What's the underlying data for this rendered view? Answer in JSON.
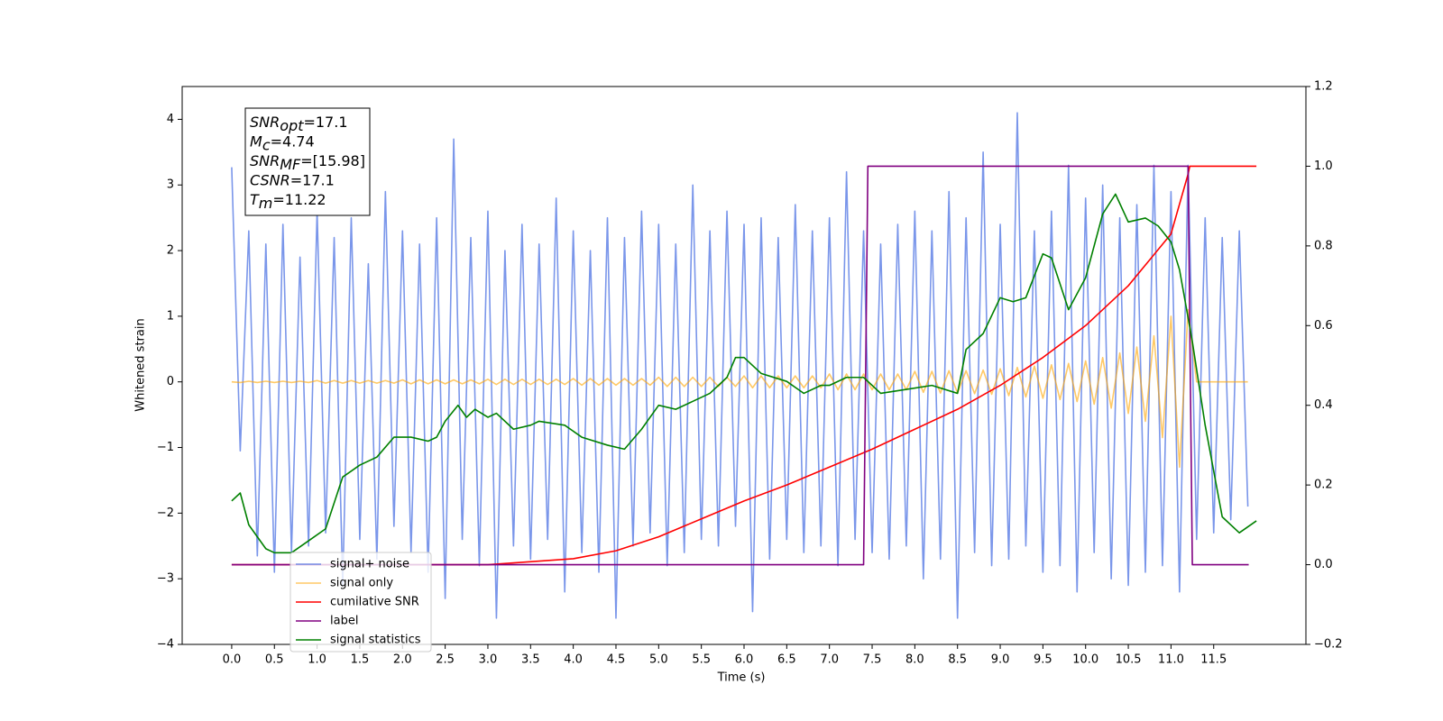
{
  "chart_data": {
    "type": "line",
    "xlabel": "Time (s)",
    "ylabel": "Whitened strain",
    "xlim": [
      -0.58,
      12.58
    ],
    "ylim": [
      -4,
      4.5
    ],
    "y2lim": [
      -0.2,
      1.2
    ],
    "xticks": [
      {
        "value": 0,
        "label": "0.0"
      },
      0.5,
      {
        "value": 1,
        "label": "1.0"
      },
      1.5,
      {
        "value": 2,
        "label": "2.0"
      },
      2.5,
      {
        "value": 3,
        "label": "3.0"
      },
      3.5,
      {
        "value": 4,
        "label": "4.0"
      },
      4.5,
      {
        "value": 5,
        "label": "5.0"
      },
      5.5,
      {
        "value": 6,
        "label": "6.0"
      },
      6.5,
      {
        "value": 7,
        "label": "7.0"
      },
      7.5,
      {
        "value": 8,
        "label": "8.0"
      },
      8.5,
      {
        "value": 9,
        "label": "9.0"
      },
      9.5,
      {
        "value": 10,
        "label": "10.0"
      },
      10.5,
      {
        "value": 11,
        "label": "11.0"
      },
      11.5
    ],
    "yticks": [
      {
        "value": -4,
        "label": "−4"
      },
      {
        "value": -3,
        "label": "−3"
      },
      {
        "value": -2,
        "label": "−2"
      },
      {
        "value": -1,
        "label": "−1"
      },
      0,
      1,
      2,
      3,
      4
    ],
    "y2ticks": [
      {
        "value": -0.2,
        "label": "−0.2"
      },
      {
        "value": 0,
        "label": "0.0"
      },
      0.2,
      0.4,
      0.6,
      0.8,
      {
        "value": 1,
        "label": "1.0"
      },
      1.2
    ],
    "annotation": [
      {
        "name": "SNR",
        "sub": "opt",
        "text": "=17.1"
      },
      {
        "name": "M",
        "sub": "c",
        "text": "=4.74"
      },
      {
        "name": "SNR",
        "sub": "MF",
        "text": "=[15.98]"
      },
      {
        "name": "CSNR",
        "text": "=17.1"
      },
      {
        "name": "T",
        "sub": "m",
        "text": "=11.22"
      }
    ],
    "x": [
      0,
      0.1,
      0.2,
      0.3,
      0.4,
      0.5,
      0.6,
      0.7,
      0.8,
      0.9,
      1,
      1.1,
      1.2,
      1.3,
      1.4,
      1.5,
      1.6,
      1.7,
      1.8,
      1.9,
      2,
      2.1,
      2.2,
      2.3,
      2.4,
      2.5,
      2.6,
      2.7,
      2.8,
      2.9,
      3,
      3.1,
      3.2,
      3.3,
      3.4,
      3.5,
      3.6,
      3.7,
      3.8,
      3.9,
      4,
      4.1,
      4.2,
      4.3,
      4.4,
      4.5,
      4.6,
      4.7,
      4.8,
      4.9,
      5,
      5.1,
      5.2,
      5.3,
      5.4,
      5.5,
      5.6,
      5.7,
      5.8,
      5.9,
      6,
      6.1,
      6.2,
      6.3,
      6.4,
      6.5,
      6.6,
      6.7,
      6.8,
      6.9,
      7,
      7.1,
      7.2,
      7.3,
      7.4,
      7.5,
      7.6,
      7.7,
      7.8,
      7.9,
      8,
      8.1,
      8.2,
      8.3,
      8.4,
      8.5,
      8.6,
      8.7,
      8.8,
      8.9,
      9,
      9.1,
      9.2,
      9.3,
      9.4,
      9.5,
      9.6,
      9.7,
      9.8,
      9.9,
      10,
      10.1,
      10.2,
      10.3,
      10.4,
      10.5,
      10.6,
      10.7,
      10.8,
      10.9,
      11,
      11.1,
      11.2,
      11.3,
      11.4,
      11.5,
      11.6,
      11.7,
      11.8,
      11.9
    ],
    "series": [
      {
        "name": "signal+ noise",
        "color": "#4169e1",
        "alpha": 0.7,
        "values": [
          3.27,
          -1.05,
          2.3,
          -2.65,
          2.1,
          -2.9,
          2.4,
          -2.6,
          1.9,
          -2.5,
          2.6,
          -2.3,
          2.2,
          -3.1,
          2.5,
          -2.4,
          1.8,
          -2.7,
          2.9,
          -2.2,
          2.3,
          -2.6,
          2.1,
          -2.9,
          2.5,
          -3.3,
          3.7,
          -2.4,
          2.2,
          -2.8,
          2.6,
          -3.6,
          2.0,
          -2.5,
          2.4,
          -2.7,
          2.1,
          -2.4,
          2.8,
          -3.2,
          2.3,
          -2.6,
          2.0,
          -2.9,
          2.5,
          -3.6,
          2.2,
          -2.5,
          2.6,
          -2.3,
          2.4,
          -2.8,
          2.1,
          -2.6,
          3.0,
          -2.4,
          2.3,
          -2.5,
          2.6,
          -2.2,
          2.4,
          -3.5,
          2.5,
          -2.7,
          2.2,
          -2.4,
          2.7,
          -2.6,
          2.3,
          -2.5,
          2.5,
          -2.8,
          3.2,
          -2.4,
          2.3,
          -2.6,
          2.1,
          -2.7,
          2.4,
          -2.5,
          2.6,
          -3.0,
          2.3,
          -2.7,
          2.9,
          -3.6,
          2.5,
          -2.6,
          3.5,
          -2.8,
          2.4,
          -2.7,
          4.1,
          -2.5,
          2.3,
          -2.9,
          2.6,
          -2.8,
          3.3,
          -3.2,
          2.8,
          -2.6,
          3.0,
          -3.0,
          2.5,
          -3.1,
          2.7,
          -2.9,
          3.3,
          -2.8,
          2.9,
          -3.2,
          3.3,
          -2.4,
          2.5,
          -2.3,
          2.2,
          -2.1,
          2.3,
          -1.9
        ]
      },
      {
        "name": "signal only",
        "color": "#ffa500",
        "alpha": 0.6,
        "values": [
          0,
          -0.01,
          0.01,
          -0.01,
          0.01,
          -0.01,
          0.01,
          -0.01,
          0.01,
          -0.01,
          0.02,
          -0.02,
          0.02,
          -0.02,
          0.02,
          -0.02,
          0.02,
          -0.02,
          0.02,
          -0.02,
          0.03,
          -0.03,
          0.03,
          -0.03,
          0.03,
          -0.03,
          0.03,
          -0.03,
          0.03,
          -0.03,
          0.04,
          -0.04,
          0.04,
          -0.04,
          0.04,
          -0.04,
          0.04,
          -0.04,
          0.04,
          -0.04,
          0.05,
          -0.05,
          0.05,
          -0.05,
          0.05,
          -0.05,
          0.05,
          -0.05,
          0.05,
          -0.05,
          0.07,
          -0.07,
          0.07,
          -0.07,
          0.07,
          -0.07,
          0.07,
          -0.07,
          0.07,
          -0.07,
          0.09,
          -0.09,
          0.09,
          -0.09,
          0.09,
          -0.09,
          0.09,
          -0.09,
          0.09,
          -0.09,
          0.12,
          -0.12,
          0.12,
          -0.12,
          0.12,
          -0.12,
          0.12,
          -0.12,
          0.12,
          -0.12,
          0.16,
          -0.16,
          0.16,
          -0.17,
          0.17,
          -0.17,
          0.17,
          -0.18,
          0.18,
          -0.19,
          0.2,
          -0.21,
          0.22,
          -0.23,
          0.24,
          -0.25,
          0.26,
          -0.27,
          0.28,
          -0.3,
          0.32,
          -0.34,
          0.37,
          -0.4,
          0.44,
          -0.48,
          0.53,
          -0.6,
          0.7,
          -0.85,
          1.0,
          -1.3,
          1.1,
          0,
          0,
          0,
          0,
          0,
          0,
          0
        ]
      },
      {
        "name": "cumilative SNR",
        "color": "#ff0000",
        "axis": "y2",
        "x": [
          0,
          3,
          4,
          4.5,
          5,
          5.5,
          6,
          6.5,
          7,
          7.5,
          8,
          8.5,
          9,
          9.5,
          10,
          10.5,
          11,
          11.2,
          11.22,
          12
        ],
        "values": [
          0,
          0,
          0.015,
          0.035,
          0.07,
          0.115,
          0.16,
          0.2,
          0.245,
          0.29,
          0.34,
          0.39,
          0.45,
          0.52,
          0.6,
          0.7,
          0.83,
          0.98,
          1,
          1
        ]
      },
      {
        "name": "label",
        "color": "#800080",
        "axis": "y2",
        "x": [
          0,
          7.4,
          7.45,
          11.2,
          11.25,
          11.91
        ],
        "values": [
          0,
          0,
          1,
          1,
          0,
          0
        ]
      },
      {
        "name": "signal statistics",
        "color": "#008000",
        "axis": "y2",
        "x": [
          0,
          0.1,
          0.2,
          0.4,
          0.5,
          0.7,
          0.9,
          1.1,
          1.3,
          1.5,
          1.7,
          1.9,
          2.1,
          2.3,
          2.4,
          2.5,
          2.65,
          2.75,
          2.85,
          3,
          3.1,
          3.3,
          3.5,
          3.6,
          3.9,
          4.1,
          4.4,
          4.6,
          4.8,
          5,
          5.2,
          5.4,
          5.6,
          5.8,
          5.9,
          6,
          6.2,
          6.5,
          6.7,
          6.9,
          7,
          7.2,
          7.4,
          7.6,
          7.9,
          8.2,
          8.5,
          8.6,
          8.8,
          9,
          9.15,
          9.3,
          9.5,
          9.6,
          9.8,
          10,
          10.2,
          10.35,
          10.5,
          10.7,
          10.85,
          11,
          11.1,
          11.25,
          11.4,
          11.6,
          11.8,
          12
        ],
        "values": [
          0.16,
          0.18,
          0.1,
          0.04,
          0.03,
          0.03,
          0.06,
          0.09,
          0.22,
          0.25,
          0.27,
          0.32,
          0.32,
          0.31,
          0.32,
          0.36,
          0.4,
          0.37,
          0.39,
          0.37,
          0.38,
          0.34,
          0.35,
          0.36,
          0.35,
          0.32,
          0.3,
          0.29,
          0.34,
          0.4,
          0.39,
          0.41,
          0.43,
          0.47,
          0.52,
          0.52,
          0.48,
          0.46,
          0.43,
          0.45,
          0.45,
          0.47,
          0.47,
          0.43,
          0.44,
          0.45,
          0.43,
          0.54,
          0.58,
          0.67,
          0.66,
          0.67,
          0.78,
          0.77,
          0.64,
          0.72,
          0.88,
          0.93,
          0.86,
          0.87,
          0.85,
          0.81,
          0.74,
          0.56,
          0.35,
          0.12,
          0.08,
          0.11
        ]
      }
    ]
  }
}
